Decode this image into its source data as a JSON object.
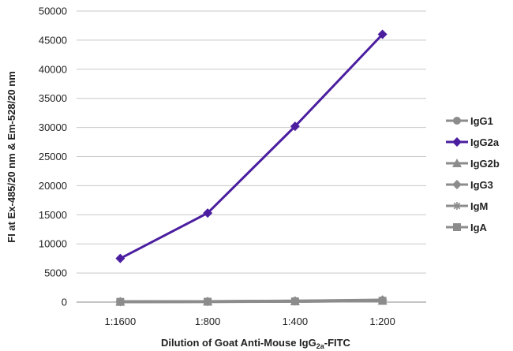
{
  "chart_data": {
    "type": "line",
    "xlabel": "Dilution of Goat Anti-Mouse IgG2a-FITC",
    "xlabel_parts": {
      "pre": "Dilution of Goat Anti-Mouse IgG",
      "sub": "2a",
      "post": "-FITC"
    },
    "ylabel": "FI at Ex-485/20 nm & Em-528/20 nm",
    "categories": [
      "1:1600",
      "1:800",
      "1:400",
      "1:200"
    ],
    "ylim": [
      0,
      50000
    ],
    "yticks": [
      0,
      5000,
      10000,
      15000,
      20000,
      25000,
      30000,
      35000,
      40000,
      45000,
      50000
    ],
    "grid": true,
    "legend_position": "right",
    "series": [
      {
        "name": "IgG1",
        "values": [
          80,
          110,
          180,
          320
        ],
        "color": "#8c8c8c",
        "marker": "circle"
      },
      {
        "name": "IgG2a",
        "values": [
          7500,
          15300,
          30200,
          46000
        ],
        "color": "#4b1ea0",
        "marker": "diamond"
      },
      {
        "name": "IgG2b",
        "values": [
          60,
          90,
          150,
          260
        ],
        "color": "#8c8c8c",
        "marker": "triangle"
      },
      {
        "name": "IgG3",
        "values": [
          70,
          100,
          200,
          380
        ],
        "color": "#8c8c8c",
        "marker": "diamond"
      },
      {
        "name": "IgM",
        "values": [
          50,
          80,
          130,
          240
        ],
        "color": "#8c8c8c",
        "marker": "star"
      },
      {
        "name": "IgA",
        "values": [
          40,
          70,
          120,
          220
        ],
        "color": "#8c8c8c",
        "marker": "square"
      }
    ]
  }
}
